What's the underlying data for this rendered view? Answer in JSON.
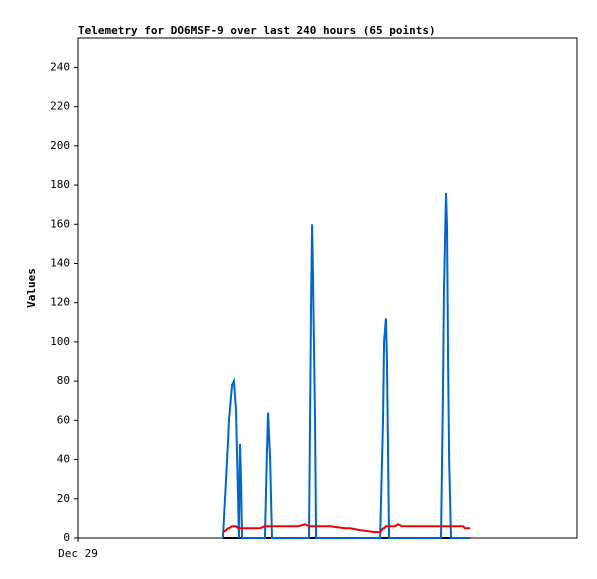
{
  "chart_data": {
    "type": "line",
    "title": "Telemetry for DO6MSF-9 over last 240 hours (65 points)",
    "y_label": "Values",
    "xlim": [
      0,
      240
    ],
    "xticks": [
      {
        "value": 0,
        "label": "Dec 29"
      }
    ],
    "ylim": [
      0,
      255
    ],
    "yticks": [
      0,
      20,
      40,
      60,
      80,
      100,
      120,
      140,
      160,
      180,
      200,
      220,
      240
    ],
    "x": [
      69.7,
      71.2,
      72.2,
      72.6,
      74.1,
      75.0,
      76.0,
      77.0,
      77.4,
      77.9,
      78.4,
      78.9,
      82.7,
      83.7,
      87.5,
      89.9,
      90.9,
      91.4,
      92.4,
      93.3,
      99.6,
      102.0,
      105.8,
      109.2,
      111.1,
      112.1,
      112.6,
      113.0,
      114.0,
      114.5,
      116.4,
      121.2,
      128.4,
      130.8,
      135.6,
      142.9,
      145.3,
      146.7,
      147.2,
      148.1,
      148.6,
      149.6,
      152.5,
      153.9,
      155.8,
      159.7,
      164.5,
      166.9,
      169.3,
      173.2,
      174.6,
      175.6,
      176.0,
      176.5,
      177.0,
      177.5,
      178.0,
      178.5,
      179.4,
      181.3,
      183.7,
      185.2,
      186.1,
      187.1,
      188.6
    ],
    "series": [
      {
        "color": "#000000",
        "values": [
          0,
          0,
          0,
          0,
          0,
          0,
          0,
          0,
          0,
          0,
          0,
          0,
          0,
          0,
          0,
          0,
          0,
          0,
          0,
          0,
          0,
          0,
          0,
          0,
          0,
          0,
          0,
          0,
          0,
          0,
          0,
          0,
          0,
          0,
          0,
          0,
          0,
          0,
          0,
          0,
          0,
          0,
          0,
          0,
          0,
          0,
          0,
          0,
          0,
          0,
          0,
          0,
          0,
          0,
          0,
          0,
          0,
          0,
          0,
          0,
          0,
          0,
          0,
          0,
          0
        ]
      },
      {
        "color": "#0066cc",
        "values": [
          0,
          30,
          50,
          60,
          78,
          80,
          65,
          20,
          0,
          48,
          30,
          0,
          0,
          0,
          0,
          0,
          45,
          64,
          40,
          0,
          0,
          0,
          0,
          0,
          0,
          120,
          160,
          135,
          60,
          0,
          0,
          0,
          0,
          0,
          0,
          0,
          0,
          60,
          100,
          112,
          90,
          0,
          0,
          0,
          0,
          0,
          0,
          0,
          0,
          0,
          0,
          80,
          125,
          150,
          176,
          158,
          90,
          40,
          0,
          0,
          0,
          0,
          0,
          0,
          0
        ]
      },
      {
        "color": "#ee0000",
        "values": [
          3,
          4,
          5,
          5,
          6,
          6,
          6,
          5,
          5,
          5,
          5,
          5,
          5,
          5,
          5,
          6,
          6,
          6,
          6,
          6,
          6,
          6,
          6,
          7,
          6,
          6,
          6,
          6,
          6,
          6,
          6,
          6,
          5,
          5,
          4,
          3,
          3,
          5,
          5,
          6,
          6,
          6,
          6,
          7,
          6,
          6,
          6,
          6,
          6,
          6,
          6,
          6,
          6,
          6,
          6,
          6,
          6,
          6,
          6,
          6,
          6,
          6,
          5,
          5,
          5
        ]
      }
    ]
  }
}
